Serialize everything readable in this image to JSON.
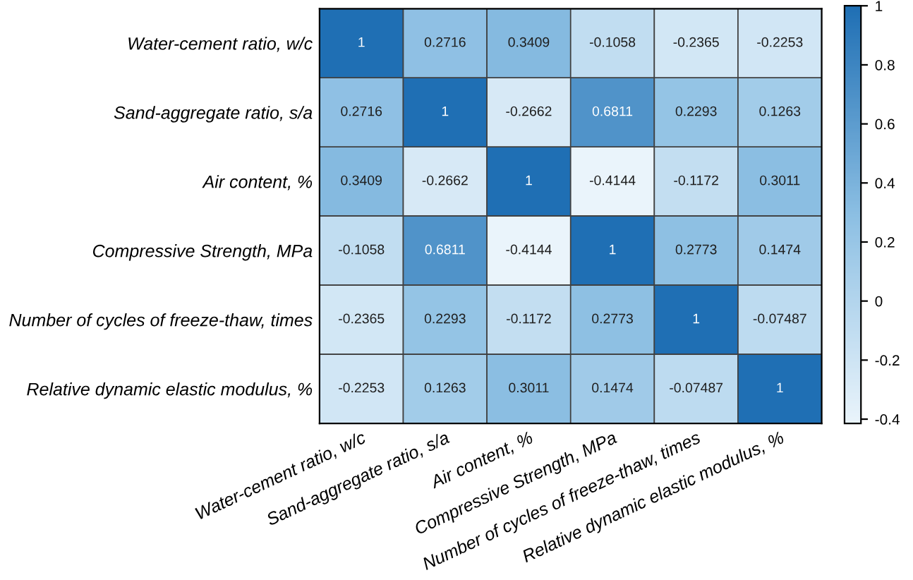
{
  "chart_data": {
    "type": "heatmap",
    "categories": [
      "Water-cement ratio, w/c",
      "Sand-aggregate ratio, s/a",
      "Air content, %",
      "Compressive Strength, MPa",
      "Number of cycles of freeze-thaw, times",
      "Relative dynamic elastic modulus, %"
    ],
    "y_categories": [
      "Water-cement ratio, w/c",
      "Sand-aggregate ratio, s/a",
      "Air content, %",
      "Compressive Strength, MPa",
      "Number of cycles of freeze-thaw, times",
      "Relative dynamic elastic modulus, %"
    ],
    "cells": [
      [
        1,
        0.2716,
        0.3409,
        -0.1058,
        -0.2365,
        -0.2253
      ],
      [
        0.2716,
        1,
        -0.2662,
        0.6811,
        0.2293,
        0.1263
      ],
      [
        0.3409,
        -0.2662,
        1,
        -0.4144,
        -0.1172,
        0.3011
      ],
      [
        -0.1058,
        0.6811,
        -0.4144,
        1,
        0.2773,
        0.1474
      ],
      [
        -0.2365,
        0.2293,
        -0.1172,
        0.2773,
        1,
        -0.07487
      ],
      [
        -0.2253,
        0.1263,
        0.3011,
        0.1474,
        -0.07487,
        1
      ]
    ],
    "data_labels": true,
    "clim": [
      -0.4144,
      1
    ],
    "cticks": [
      -0.4,
      -0.2,
      0,
      0.2,
      0.4,
      0.6,
      0.8,
      1
    ]
  }
}
